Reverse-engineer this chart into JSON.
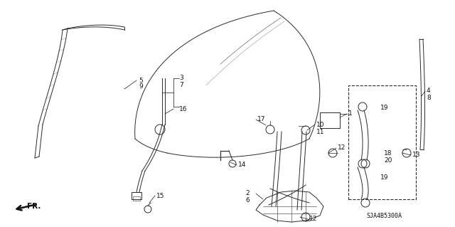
{
  "background_color": "#ffffff",
  "figsize": [
    6.4,
    3.19
  ],
  "dpi": 100,
  "diagram_code": "SJA4B5300A",
  "color": "#2a2a2a",
  "lw": 0.7
}
